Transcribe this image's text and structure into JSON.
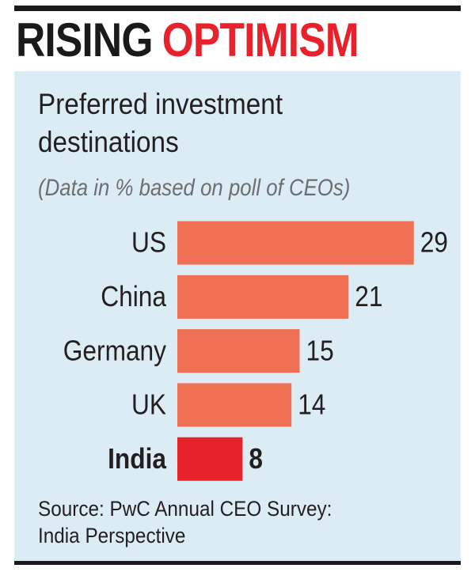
{
  "header": {
    "title_part1": "RISING",
    "title_part2": "OPTIMISM"
  },
  "colors": {
    "title_dark": "#1a1a1a",
    "title_accent": "#e8222b",
    "panel_background": "#dcecf4",
    "bar_default": "#f07055",
    "bar_highlight": "#e8222b"
  },
  "chart_data": {
    "type": "bar",
    "orientation": "horizontal",
    "title": "Preferred investment destinations",
    "subtitle": "(Data in % based on poll of CEOs)",
    "categories": [
      "US",
      "China",
      "Germany",
      "UK",
      "India"
    ],
    "values": [
      29,
      21,
      15,
      14,
      8
    ],
    "highlight": "India",
    "data_labels": true,
    "grid": false,
    "xlabel": "",
    "ylabel": ""
  },
  "footer": {
    "source_line1": "Source: PwC Annual CEO Survey:",
    "source_line2": "India Perspective"
  }
}
